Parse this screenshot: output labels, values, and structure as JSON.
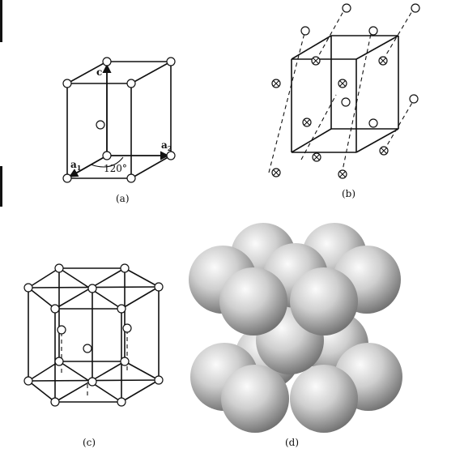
{
  "panels": [
    {
      "id": "a",
      "caption": "(a)"
    },
    {
      "id": "b",
      "caption": "(b)"
    },
    {
      "id": "c",
      "caption": "(c)"
    },
    {
      "id": "d",
      "caption": "(d)"
    }
  ],
  "axes": {
    "c": "c",
    "a1": "a",
    "a1_sub": "1",
    "a2": "a",
    "a2_sub": "2",
    "angle": "120°"
  },
  "colors": {
    "line": "#111111",
    "sphere_light": "#f2f2f2",
    "sphere_dark": "#7a7a7a"
  }
}
